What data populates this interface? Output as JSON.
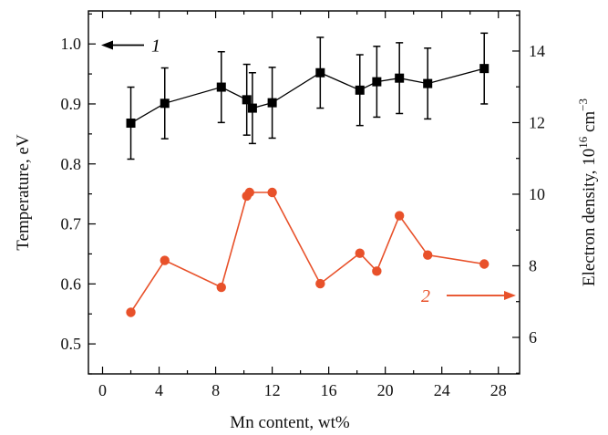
{
  "chart_data": {
    "type": "scatter",
    "title": "",
    "xlabel": "Mn content, wt%",
    "ylabel_left": "Temperature, eV",
    "ylabel_right": {
      "base": "Electron density, 10",
      "sup1": "16",
      "unit": " cm",
      "sup2": "−3"
    },
    "xlim": [
      -1,
      29.5
    ],
    "ylim_left": [
      0.45,
      1.055
    ],
    "ylim_right": [
      4.98,
      15.12
    ],
    "x_ticks": [
      0,
      4,
      8,
      12,
      16,
      20,
      24,
      28
    ],
    "y_left_ticks": [
      "0.5",
      "0.6",
      "0.7",
      "0.8",
      "0.9",
      "1.0"
    ],
    "y_left_tick_values": [
      0.5,
      0.6,
      0.7,
      0.8,
      0.9,
      1.0
    ],
    "y_right_ticks": [
      6,
      8,
      10,
      12,
      14
    ],
    "grid": false,
    "series": [
      {
        "label": "1",
        "axis": "left",
        "color": "#000000",
        "marker": "square",
        "x": [
          2.0,
          4.4,
          8.4,
          10.2,
          10.6,
          12.0,
          15.4,
          18.2,
          19.4,
          21.0,
          23.0,
          27.0
        ],
        "y": [
          0.868,
          0.901,
          0.928,
          0.907,
          0.893,
          0.902,
          0.952,
          0.923,
          0.937,
          0.943,
          0.934,
          0.959
        ],
        "err": [
          0.06,
          0.059,
          0.059,
          0.059,
          0.059,
          0.059,
          0.059,
          0.059,
          0.059,
          0.059,
          0.059,
          0.059
        ]
      },
      {
        "label": "2",
        "axis": "right",
        "color": "#e8512a",
        "marker": "circle",
        "x": [
          2.0,
          4.4,
          8.4,
          10.2,
          10.4,
          12.0,
          15.4,
          18.2,
          19.4,
          21.0,
          23.0,
          27.0
        ],
        "y": [
          6.7,
          8.15,
          7.4,
          9.95,
          10.05,
          10.05,
          7.5,
          8.35,
          7.85,
          9.4,
          8.3,
          8.05
        ]
      }
    ],
    "annotations": [
      {
        "text": "1",
        "series": "1",
        "arrow": "left"
      },
      {
        "text": "2",
        "series": "2",
        "arrow": "right"
      }
    ]
  }
}
